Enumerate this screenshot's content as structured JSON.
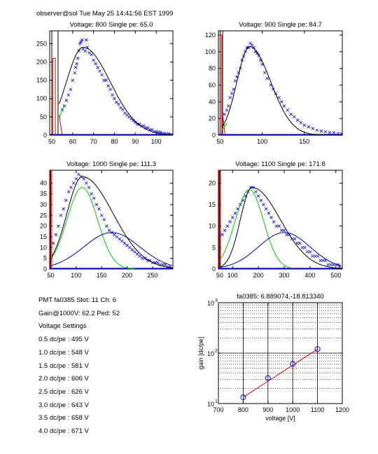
{
  "header": "observer@sol  Tue May 25 14:41:56 EST 1999",
  "info": {
    "lines": [
      "PMT fa0385 Slot: 11 Ch: 6",
      "Gain@1000V: 62.2 Ped: 52",
      "Voltage Settings",
      "0.5 dc/pe : 495 V",
      "1.0 dc/pe : 548 V",
      "1.5 dc/pe : 581 V",
      "2.0 dc/pe : 606 V",
      "2.5 dc/pe : 626 V",
      "3.0 dc/pe : 643 V",
      "3.5 dc/pe : 658 V",
      "4.0 dc/pe : 671 V"
    ]
  },
  "colors": {
    "data": "#0000ff",
    "fit": "#000000",
    "gauss": "#00cc00",
    "tail": "#0000aa",
    "ped": "#dd0000"
  },
  "chart_data": [
    {
      "type": "scatter",
      "title": "Voltage: 800 Single pe: 65.0",
      "xlim": [
        49,
        108
      ],
      "ylim": [
        0,
        285
      ],
      "xticks": [
        50,
        60,
        70,
        80,
        90,
        100
      ],
      "yticks": [
        0,
        50,
        100,
        150,
        200,
        250
      ],
      "vlines": [
        50,
        53
      ],
      "ped": {
        "x": 50.5,
        "w": 1.2,
        "h": 210
      },
      "ped2": {
        "x": 53.5,
        "w": 1.5,
        "h": 55
      },
      "points": [
        [
          55,
          70
        ],
        [
          56,
          80
        ],
        [
          57,
          95
        ],
        [
          58,
          110
        ],
        [
          59,
          125
        ],
        [
          60,
          150
        ],
        [
          61,
          170
        ],
        [
          61.5,
          185
        ],
        [
          62,
          195
        ],
        [
          62.5,
          210
        ],
        [
          63,
          230
        ],
        [
          63.5,
          250
        ],
        [
          64,
          255
        ],
        [
          64.5,
          260
        ],
        [
          65,
          235
        ],
        [
          66,
          230
        ],
        [
          66.5,
          260
        ],
        [
          67,
          240
        ],
        [
          68,
          225
        ],
        [
          69,
          220
        ],
        [
          70,
          205
        ],
        [
          71,
          195
        ],
        [
          72,
          185
        ],
        [
          73,
          175
        ],
        [
          74,
          165
        ],
        [
          75,
          150
        ],
        [
          76,
          150
        ],
        [
          77,
          135
        ],
        [
          78,
          125
        ],
        [
          79,
          110
        ],
        [
          80,
          100
        ],
        [
          81,
          90
        ],
        [
          82,
          85
        ],
        [
          83,
          75
        ],
        [
          84,
          70
        ],
        [
          85,
          60
        ],
        [
          86,
          55
        ],
        [
          87,
          50
        ],
        [
          88,
          45
        ],
        [
          89,
          40
        ],
        [
          90,
          35
        ],
        [
          91,
          30
        ],
        [
          92,
          30
        ],
        [
          93,
          25
        ],
        [
          94,
          25
        ],
        [
          95,
          20
        ],
        [
          96,
          20
        ],
        [
          97,
          15
        ],
        [
          98,
          15
        ],
        [
          99,
          10
        ],
        [
          100,
          10
        ],
        [
          101,
          8
        ],
        [
          102,
          8
        ],
        [
          103,
          5
        ],
        [
          104,
          5
        ],
        [
          105,
          3
        ],
        [
          106,
          4
        ],
        [
          107,
          2
        ]
      ],
      "fit": {
        "mu": 65.0,
        "sl": 8.0,
        "sr": 13,
        "a": 240,
        "x0": 53.5
      },
      "gauss": {
        "mu": 60,
        "s": 5,
        "a": 110,
        "x0": 53.5,
        "x1": 56
      }
    },
    {
      "type": "scatter",
      "title": "Voltage: 900 Single pe: 84.7",
      "xlim": [
        48,
        195
      ],
      "ylim": [
        0,
        125
      ],
      "xticks": [
        50,
        100,
        150
      ],
      "yticks": [
        0,
        20,
        40,
        60,
        80,
        100,
        120
      ],
      "vlines": [
        50,
        53
      ],
      "ped": {
        "x": 50,
        "w": 2,
        "h": 120
      },
      "ped2": {
        "x": 53,
        "w": 3,
        "h": 25
      },
      "points": [
        [
          55,
          25
        ],
        [
          58,
          30
        ],
        [
          60,
          35
        ],
        [
          62,
          45
        ],
        [
          64,
          50
        ],
        [
          66,
          55
        ],
        [
          68,
          65
        ],
        [
          70,
          70
        ],
        [
          72,
          75
        ],
        [
          74,
          80
        ],
        [
          76,
          90
        ],
        [
          78,
          95
        ],
        [
          80,
          100
        ],
        [
          82,
          105
        ],
        [
          84,
          105
        ],
        [
          86,
          110
        ],
        [
          88,
          108
        ],
        [
          90,
          105
        ],
        [
          92,
          100
        ],
        [
          94,
          98
        ],
        [
          96,
          95
        ],
        [
          98,
          90
        ],
        [
          100,
          85
        ],
        [
          103,
          75
        ],
        [
          106,
          68
        ],
        [
          110,
          60
        ],
        [
          113,
          55
        ],
        [
          116,
          50
        ],
        [
          120,
          45
        ],
        [
          123,
          40
        ],
        [
          126,
          35
        ],
        [
          130,
          30
        ],
        [
          134,
          25
        ],
        [
          138,
          22
        ],
        [
          142,
          18
        ],
        [
          146,
          15
        ],
        [
          150,
          12
        ],
        [
          155,
          10
        ],
        [
          160,
          8
        ],
        [
          165,
          6
        ],
        [
          170,
          5
        ],
        [
          175,
          4
        ],
        [
          180,
          3
        ],
        [
          185,
          3
        ],
        [
          190,
          2
        ],
        [
          194,
          2
        ]
      ],
      "fit": {
        "mu": 85,
        "sl": 15,
        "sr": 25,
        "a": 106,
        "x0": 52
      },
      "gauss": {
        "mu": 75,
        "s": 12,
        "a": 40,
        "x0": 52,
        "x1": 58
      }
    },
    {
      "type": "scatter",
      "title": "Voltage: 1000 Single pe: 111.3",
      "xlim": [
        48,
        290
      ],
      "ylim": [
        0,
        46
      ],
      "xticks": [
        50,
        100,
        150,
        200,
        250
      ],
      "yticks": [
        0,
        5,
        10,
        15,
        20,
        25,
        30,
        35,
        40
      ],
      "vlines": [
        50
      ],
      "ped": {
        "x": 49,
        "w": 3,
        "h": 46
      },
      "ped2": null,
      "points": [
        [
          55,
          12
        ],
        [
          60,
          16
        ],
        [
          65,
          20
        ],
        [
          70,
          25
        ],
        [
          75,
          28
        ],
        [
          80,
          32
        ],
        [
          85,
          36
        ],
        [
          90,
          38
        ],
        [
          95,
          40
        ],
        [
          100,
          42
        ],
        [
          105,
          44
        ],
        [
          110,
          43
        ],
        [
          115,
          42
        ],
        [
          120,
          40
        ],
        [
          125,
          38
        ],
        [
          130,
          35
        ],
        [
          135,
          33
        ],
        [
          140,
          30
        ],
        [
          145,
          28
        ],
        [
          150,
          25
        ],
        [
          155,
          23
        ],
        [
          160,
          20
        ],
        [
          165,
          18
        ],
        [
          170,
          17
        ],
        [
          175,
          16
        ],
        [
          180,
          15
        ],
        [
          185,
          14
        ],
        [
          190,
          13
        ],
        [
          195,
          12
        ],
        [
          200,
          11
        ],
        [
          205,
          10
        ],
        [
          210,
          9
        ],
        [
          215,
          8
        ],
        [
          220,
          7
        ],
        [
          225,
          6
        ],
        [
          230,
          5
        ],
        [
          235,
          5
        ],
        [
          240,
          4
        ],
        [
          245,
          4
        ],
        [
          250,
          3
        ],
        [
          255,
          3
        ],
        [
          260,
          3
        ],
        [
          265,
          2
        ],
        [
          270,
          2
        ],
        [
          275,
          2
        ],
        [
          280,
          1
        ],
        [
          285,
          1
        ]
      ],
      "fit": {
        "mu": 112,
        "sl": 30,
        "sr": 60,
        "a": 43,
        "x0": 52
      },
      "gauss": {
        "mu": 112,
        "s": 30,
        "a": 38,
        "x0": 52,
        "x1": 215
      },
      "tail": {
        "mu": 170,
        "s": 55,
        "a": 17,
        "x0": 52,
        "x1": 288
      }
    },
    {
      "type": "scatter",
      "title": "Voltage: 1100 Single pe: 171.8",
      "xlim": [
        45,
        525
      ],
      "ylim": [
        0,
        23
      ],
      "xticks": [
        50,
        100,
        200,
        300,
        400,
        500
      ],
      "yticks": [
        0,
        5,
        10,
        15,
        20
      ],
      "vlines": [
        50
      ],
      "ped": {
        "x": 48,
        "w": 5,
        "h": 23
      },
      "ped2": null,
      "points": [
        [
          60,
          8
        ],
        [
          70,
          9
        ],
        [
          80,
          10
        ],
        [
          90,
          11
        ],
        [
          100,
          12
        ],
        [
          110,
          13
        ],
        [
          120,
          14
        ],
        [
          130,
          15
        ],
        [
          140,
          16
        ],
        [
          150,
          17
        ],
        [
          160,
          18
        ],
        [
          170,
          19
        ],
        [
          180,
          19
        ],
        [
          190,
          18
        ],
        [
          200,
          17
        ],
        [
          210,
          16
        ],
        [
          220,
          15
        ],
        [
          230,
          14
        ],
        [
          240,
          13
        ],
        [
          250,
          12
        ],
        [
          260,
          11
        ],
        [
          270,
          10
        ],
        [
          280,
          10
        ],
        [
          290,
          9
        ],
        [
          300,
          9
        ],
        [
          310,
          8
        ],
        [
          320,
          8
        ],
        [
          330,
          7
        ],
        [
          340,
          7
        ],
        [
          350,
          6
        ],
        [
          360,
          6
        ],
        [
          370,
          5
        ],
        [
          380,
          5
        ],
        [
          390,
          4
        ],
        [
          400,
          4
        ],
        [
          410,
          3
        ],
        [
          420,
          3
        ],
        [
          430,
          3
        ],
        [
          440,
          2
        ],
        [
          450,
          2
        ],
        [
          460,
          2
        ],
        [
          470,
          1
        ],
        [
          480,
          1
        ],
        [
          490,
          1
        ],
        [
          500,
          1
        ],
        [
          510,
          1
        ],
        [
          515,
          0.5
        ]
      ],
      "fit": {
        "mu": 175,
        "sl": 45,
        "sr": 110,
        "a": 19,
        "x0": 52
      },
      "gauss": {
        "mu": 165,
        "s": 55,
        "a": 18.5,
        "x0": 52,
        "x1": 330
      },
      "tail": {
        "mu": 300,
        "s": 100,
        "a": 8.5,
        "x0": 52,
        "x1": 520
      }
    },
    {
      "type": "line",
      "title": "fa0385: 6.889074,-18.813340",
      "xlabel": "voltage [V]",
      "ylabel": "gain [dc/pe]",
      "xlim": [
        700,
        1200
      ],
      "ylim": [
        10,
        1000
      ],
      "yscale": "log",
      "xticks": [
        700,
        800,
        900,
        1000,
        1100,
        1200
      ],
      "yticks": [
        10,
        100,
        1000
      ],
      "grid": true,
      "series": [
        {
          "x": [
            800,
            900,
            1000,
            1100
          ],
          "y": [
            13.3,
            32.0,
            61.0,
            120.0
          ]
        }
      ]
    }
  ]
}
